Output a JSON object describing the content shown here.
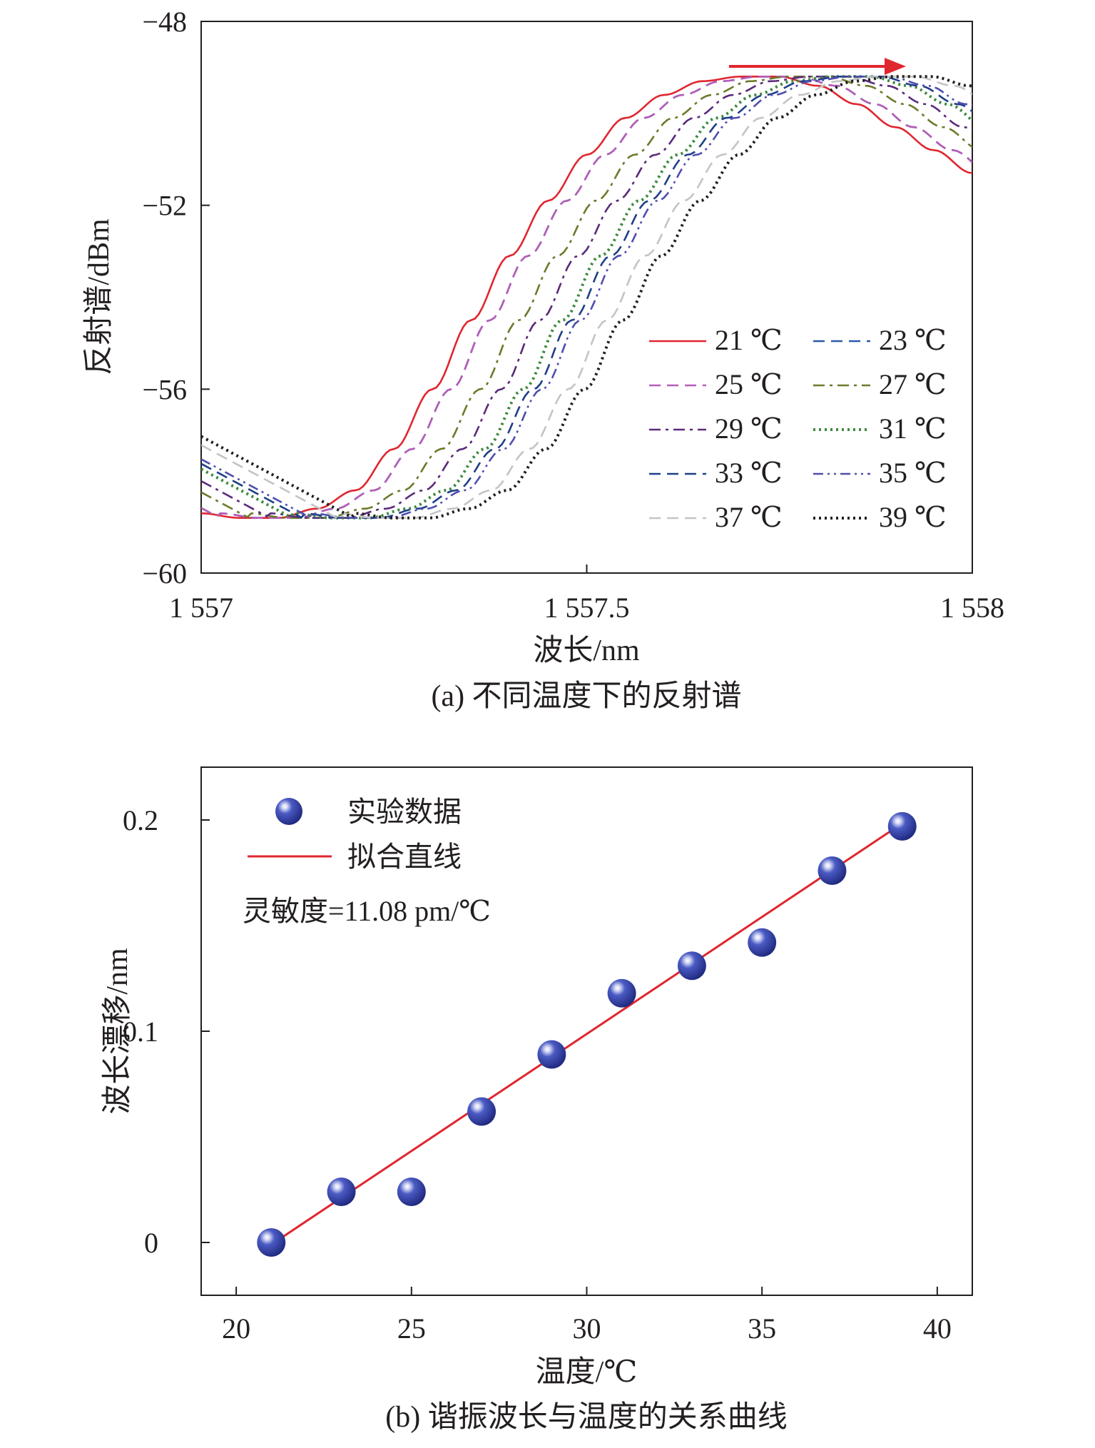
{
  "chart_data": [
    {
      "type": "line",
      "caption": "(a) 不同温度下的反射谱",
      "xlabel": "波长/nm",
      "ylabel": "反射谱/dBm",
      "xlim": [
        1557,
        1558
      ],
      "ylim": [
        -60,
        -48
      ],
      "xticks": [
        1557,
        1557.5,
        1558
      ],
      "xtick_labels": [
        "1 557",
        "1 557.5",
        "1 558"
      ],
      "yticks": [
        -60,
        -56,
        -52,
        -48
      ],
      "ytick_labels": [
        "−60",
        "−56",
        "−52",
        "−48"
      ],
      "legend_position": "lower-right",
      "annotation": "red arrow pointing right (peak shifts to longer wavelength)",
      "series": [
        {
          "name": "21 ℃",
          "color": "#e0262f",
          "style": "solid",
          "shift_nm": 0.0
        },
        {
          "name": "23 ℃",
          "color": "#2a5aa8",
          "style": "dash",
          "shift_nm": 0.024
        },
        {
          "name": "25 ℃",
          "color": "#b65db8",
          "style": "dash",
          "shift_nm": 0.024
        },
        {
          "name": "27 ℃",
          "color": "#6b7a2a",
          "style": "dashdot",
          "shift_nm": 0.062
        },
        {
          "name": "29 ℃",
          "color": "#5a2a7a",
          "style": "dashdot",
          "shift_nm": 0.089
        },
        {
          "name": "31 ℃",
          "color": "#3f8a3f",
          "style": "dot",
          "shift_nm": 0.118
        },
        {
          "name": "33 ℃",
          "color": "#1f3f88",
          "style": "dash",
          "shift_nm": 0.131
        },
        {
          "name": "35 ℃",
          "color": "#4e4eb0",
          "style": "dashdotdot",
          "shift_nm": 0.142
        },
        {
          "name": "37 ℃",
          "color": "#c4c4c4",
          "style": "dash",
          "shift_nm": 0.176
        },
        {
          "name": "39 ℃",
          "color": "#231f20",
          "style": "dot",
          "shift_nm": 0.197
        }
      ],
      "base_curve": {
        "x": [
          1557.0,
          1557.05,
          1557.1,
          1557.15,
          1557.2,
          1557.25,
          1557.3,
          1557.35,
          1557.4,
          1557.45,
          1557.5,
          1557.55,
          1557.6,
          1557.65,
          1557.7,
          1557.75,
          1557.8,
          1557.85,
          1557.9,
          1557.95,
          1558.0
        ],
        "y": [
          -58.7,
          -58.8,
          -58.8,
          -58.6,
          -58.2,
          -57.3,
          -56.0,
          -54.5,
          -53.1,
          -51.9,
          -50.9,
          -50.1,
          -49.6,
          -49.3,
          -49.2,
          -49.2,
          -49.4,
          -49.8,
          -50.3,
          -50.8,
          -51.3
        ]
      }
    },
    {
      "type": "scatter",
      "caption": "(b) 谐振波长与温度的关系曲线",
      "xlabel": "温度/℃",
      "ylabel": "波长漂移/nm",
      "xlim": [
        19,
        41
      ],
      "ylim": [
        -0.025,
        0.225
      ],
      "xticks": [
        20,
        25,
        30,
        35,
        40
      ],
      "yticks": [
        0,
        0.1,
        0.2
      ],
      "ytick_labels": [
        "0",
        "0.1",
        "0.2"
      ],
      "legend_position": "top-left",
      "legend": [
        "实验数据",
        "拟合直线"
      ],
      "annotation": "灵敏度=11.08 pm/℃",
      "points": {
        "x": [
          21,
          23,
          25,
          27,
          29,
          31,
          33,
          35,
          37,
          39
        ],
        "y": [
          0,
          0.024,
          0.024,
          0.062,
          0.089,
          0.118,
          0.131,
          0.142,
          0.176,
          0.197
        ]
      },
      "fit_line": {
        "slope": 0.01108,
        "x": [
          21,
          39
        ],
        "y": [
          -0.001,
          0.1984
        ]
      },
      "colors": {
        "marker": "#2b3a9e",
        "fit": "#e0262f"
      }
    }
  ]
}
